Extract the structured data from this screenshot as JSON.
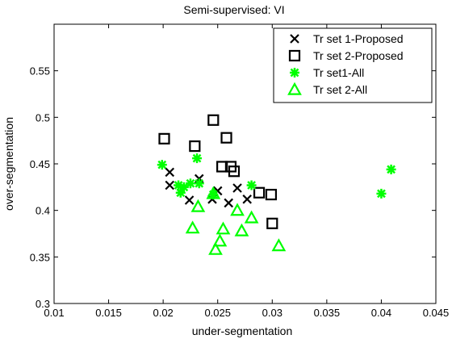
{
  "chart_data": {
    "type": "scatter",
    "title": "Semi-supervised: VI",
    "xlabel": "under-segmentation",
    "ylabel": "over-segmentation",
    "xlim": [
      0.01,
      0.045
    ],
    "ylim": [
      0.3,
      0.6
    ],
    "xticks": [
      0.01,
      0.015,
      0.02,
      0.025,
      0.03,
      0.035,
      0.04,
      0.045
    ],
    "xtick_labels": [
      "0.01",
      "0.015",
      "0.02",
      "0.025",
      "0.03",
      "0.035",
      "0.04",
      "0.045"
    ],
    "yticks": [
      0.3,
      0.35,
      0.4,
      0.45,
      0.5,
      0.55
    ],
    "ytick_labels": [
      "0.3",
      "0.35",
      "0.4",
      "0.45",
      "0.5",
      "0.55"
    ],
    "grid": false,
    "legend_position": "top-right",
    "series": [
      {
        "name": "Tr set 1-Proposed",
        "marker": "x",
        "color": "#000000",
        "points": [
          [
            0.0206,
            0.441
          ],
          [
            0.0206,
            0.427
          ],
          [
            0.0224,
            0.411
          ],
          [
            0.0233,
            0.434
          ],
          [
            0.0245,
            0.412
          ],
          [
            0.025,
            0.421
          ],
          [
            0.026,
            0.408
          ],
          [
            0.0268,
            0.424
          ],
          [
            0.0277,
            0.412
          ]
        ]
      },
      {
        "name": "Tr set 2-Proposed",
        "marker": "square",
        "color": "#000000",
        "points": [
          [
            0.0201,
            0.477
          ],
          [
            0.0229,
            0.469
          ],
          [
            0.0246,
            0.497
          ],
          [
            0.0254,
            0.447
          ],
          [
            0.0258,
            0.478
          ],
          [
            0.0262,
            0.447
          ],
          [
            0.0265,
            0.442
          ],
          [
            0.0288,
            0.419
          ],
          [
            0.0299,
            0.417
          ],
          [
            0.03,
            0.386
          ]
        ]
      },
      {
        "name": "Tr set1-All",
        "marker": "star",
        "color": "#00ff00",
        "points": [
          [
            0.0199,
            0.449
          ],
          [
            0.0214,
            0.427
          ],
          [
            0.0216,
            0.419
          ],
          [
            0.0219,
            0.425
          ],
          [
            0.0225,
            0.429
          ],
          [
            0.0231,
            0.456
          ],
          [
            0.0233,
            0.429
          ],
          [
            0.0246,
            0.417
          ],
          [
            0.0281,
            0.427
          ],
          [
            0.04,
            0.418
          ],
          [
            0.0409,
            0.444
          ]
        ]
      },
      {
        "name": "Tr set 2-All",
        "marker": "triangle",
        "color": "#00ff00",
        "points": [
          [
            0.0227,
            0.381
          ],
          [
            0.0232,
            0.404
          ],
          [
            0.0246,
            0.418
          ],
          [
            0.0248,
            0.358
          ],
          [
            0.0252,
            0.367
          ],
          [
            0.0255,
            0.38
          ],
          [
            0.0268,
            0.4
          ],
          [
            0.0272,
            0.378
          ],
          [
            0.0281,
            0.392
          ],
          [
            0.0306,
            0.362
          ]
        ]
      }
    ]
  }
}
